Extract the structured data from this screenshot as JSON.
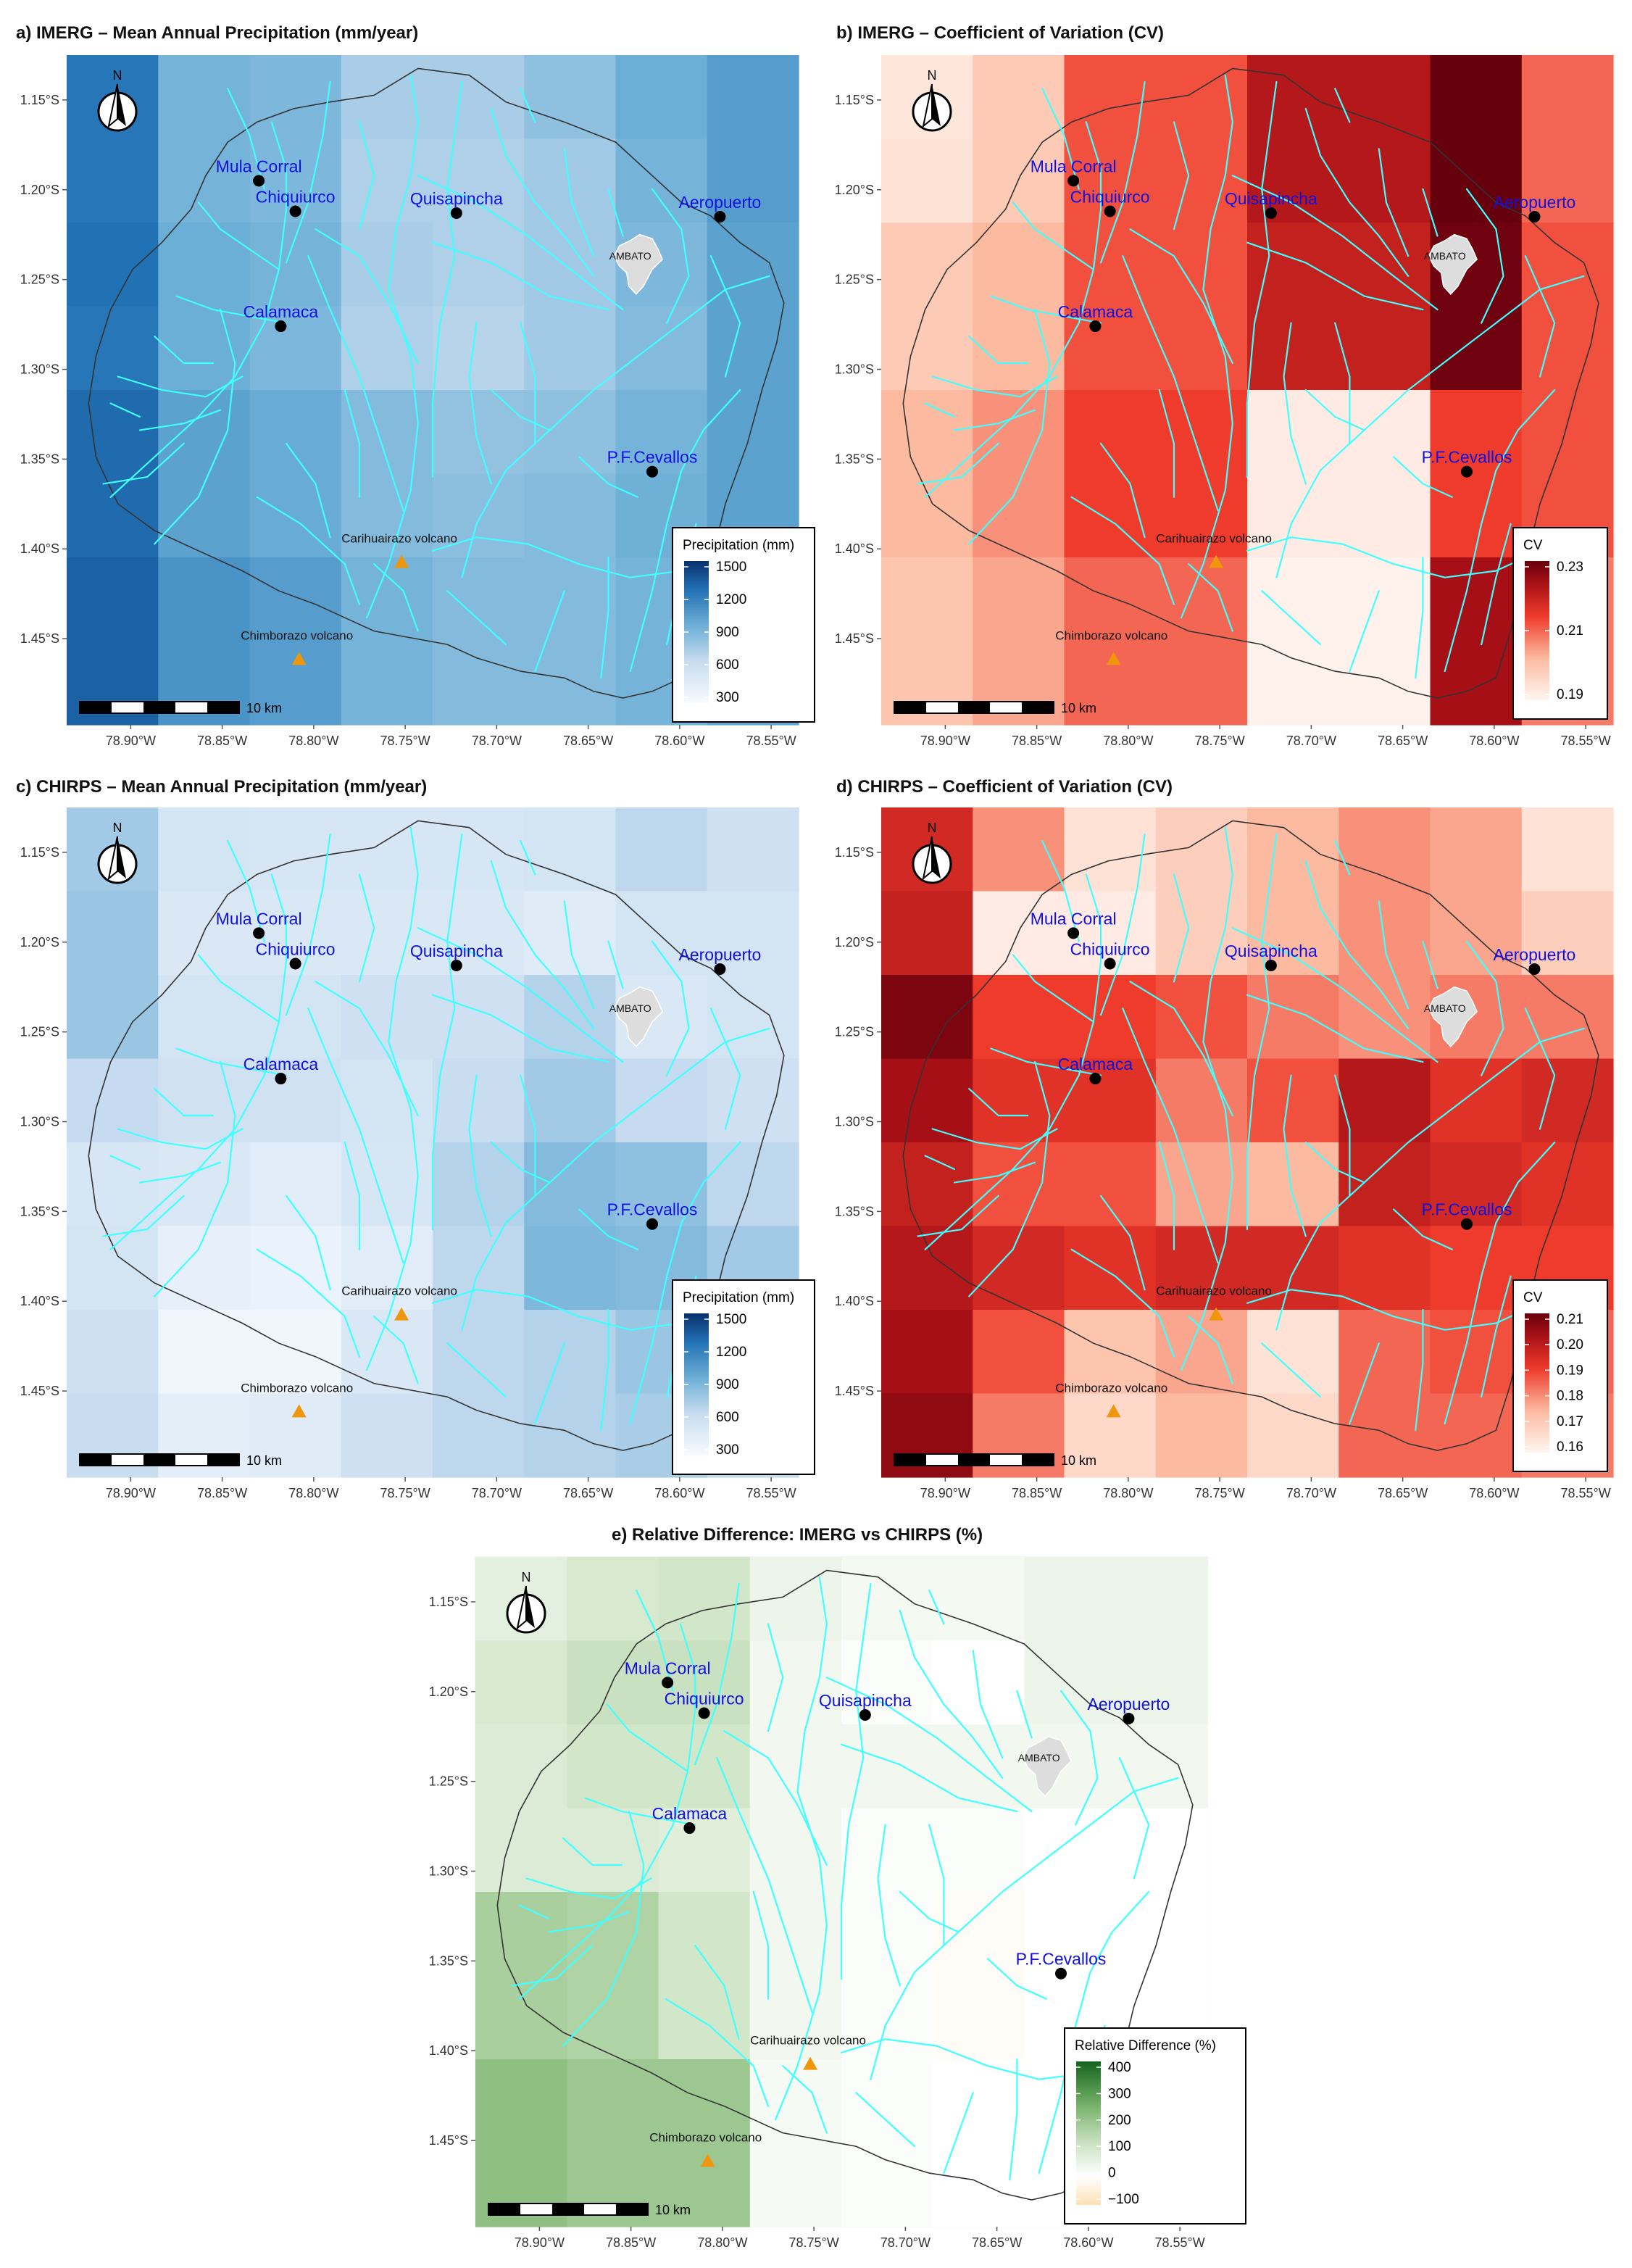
{
  "panels": [
    {
      "key": "a",
      "title": "a) IMERG – Mean Annual Precipitation (mm/year)",
      "scheme": "blue",
      "legend": {
        "title": "Precipitation (mm)",
        "ticks": [
          "1500",
          "1200",
          "900",
          "600",
          "300"
        ]
      },
      "grid": [
        [
          0.78,
          0.52,
          0.5,
          0.38,
          0.38,
          0.45,
          0.55,
          0.62
        ],
        [
          0.78,
          0.52,
          0.5,
          0.36,
          0.36,
          0.4,
          0.52,
          0.62
        ],
        [
          0.8,
          0.55,
          0.52,
          0.38,
          0.36,
          0.4,
          0.5,
          0.6
        ],
        [
          0.78,
          0.55,
          0.5,
          0.36,
          0.34,
          0.4,
          0.48,
          0.6
        ],
        [
          0.82,
          0.6,
          0.56,
          0.48,
          0.44,
          0.45,
          0.52,
          0.6
        ],
        [
          0.82,
          0.6,
          0.56,
          0.48,
          0.46,
          0.48,
          0.54,
          0.6
        ],
        [
          0.85,
          0.66,
          0.62,
          0.52,
          0.48,
          0.48,
          0.52,
          0.58
        ],
        [
          0.85,
          0.66,
          0.62,
          0.52,
          0.48,
          0.48,
          0.52,
          0.58
        ]
      ]
    },
    {
      "key": "b",
      "title": "b) IMERG – Coefficient of Variation (CV)",
      "scheme": "red",
      "legend": {
        "title": "CV",
        "ticks": [
          "0.23",
          "0.21",
          "0.19"
        ]
      },
      "grid": [
        [
          0.08,
          0.22,
          0.55,
          0.55,
          0.8,
          0.8,
          1.0,
          0.5
        ],
        [
          0.1,
          0.22,
          0.55,
          0.55,
          0.8,
          0.8,
          1.0,
          0.5
        ],
        [
          0.22,
          0.3,
          0.55,
          0.55,
          0.75,
          0.75,
          0.98,
          0.55
        ],
        [
          0.22,
          0.3,
          0.55,
          0.55,
          0.75,
          0.75,
          0.98,
          0.55
        ],
        [
          0.3,
          0.4,
          0.6,
          0.6,
          0.05,
          0.05,
          0.6,
          0.55
        ],
        [
          0.3,
          0.4,
          0.6,
          0.6,
          0.05,
          0.05,
          0.6,
          0.55
        ],
        [
          0.25,
          0.35,
          0.5,
          0.5,
          0.02,
          0.02,
          0.85,
          0.45
        ],
        [
          0.25,
          0.35,
          0.5,
          0.5,
          0.02,
          0.02,
          0.85,
          0.45
        ]
      ]
    },
    {
      "key": "c",
      "title": "c) CHIRPS – Mean Annual Precipitation (mm/year)",
      "scheme": "blue",
      "legend": {
        "title": "Precipitation (mm)",
        "ticks": [
          "1500",
          "1200",
          "900",
          "600",
          "300"
        ]
      },
      "grid": [
        [
          0.4,
          0.22,
          0.2,
          0.2,
          0.2,
          0.22,
          0.32,
          0.25
        ],
        [
          0.42,
          0.18,
          0.18,
          0.18,
          0.18,
          0.15,
          0.22,
          0.22
        ],
        [
          0.42,
          0.22,
          0.22,
          0.25,
          0.25,
          0.35,
          0.18,
          0.22
        ],
        [
          0.3,
          0.24,
          0.24,
          0.22,
          0.28,
          0.4,
          0.3,
          0.25
        ],
        [
          0.2,
          0.18,
          0.14,
          0.2,
          0.35,
          0.48,
          0.45,
          0.32
        ],
        [
          0.22,
          0.1,
          0.08,
          0.14,
          0.32,
          0.5,
          0.48,
          0.4
        ],
        [
          0.25,
          0.05,
          0.05,
          0.18,
          0.32,
          0.35,
          0.42,
          0.35
        ],
        [
          0.28,
          0.12,
          0.15,
          0.25,
          0.32,
          0.35,
          0.38,
          0.3
        ]
      ]
    },
    {
      "key": "d",
      "title": "d) CHIRPS – Coefficient of Variation (CV)",
      "scheme": "red",
      "legend": {
        "title": "CV",
        "ticks": [
          "0.21",
          "0.20",
          "0.19",
          "0.18",
          "0.17",
          "0.16"
        ]
      },
      "grid": [
        [
          0.7,
          0.4,
          0.1,
          0.2,
          0.3,
          0.4,
          0.35,
          0.1
        ],
        [
          0.75,
          0.05,
          0.05,
          0.2,
          0.3,
          0.4,
          0.35,
          0.2
        ],
        [
          0.95,
          0.6,
          0.6,
          0.55,
          0.45,
          0.4,
          0.45,
          0.45
        ],
        [
          0.85,
          0.65,
          0.65,
          0.45,
          0.55,
          0.8,
          0.65,
          0.7
        ],
        [
          0.75,
          0.55,
          0.55,
          0.35,
          0.3,
          0.75,
          0.7,
          0.65
        ],
        [
          0.8,
          0.7,
          0.65,
          0.7,
          0.7,
          0.65,
          0.6,
          0.6
        ],
        [
          0.85,
          0.55,
          0.25,
          0.35,
          0.1,
          0.5,
          0.55,
          0.5
        ],
        [
          0.9,
          0.45,
          0.15,
          0.3,
          0.15,
          0.5,
          0.5,
          0.45
        ]
      ]
    },
    {
      "key": "e",
      "title": "e) Relative Difference: IMERG vs CHIRPS (%)",
      "scheme": "green",
      "legend": {
        "title": "Relative Difference (%)",
        "ticks": [
          "400",
          "300",
          "200",
          "100",
          "0",
          "−100"
        ]
      },
      "grid": [
        [
          0.32,
          0.38,
          0.4,
          0.28,
          0.25,
          0.25,
          0.28,
          0.28
        ],
        [
          0.38,
          0.44,
          0.44,
          0.26,
          0.22,
          0.2,
          0.28,
          0.28
        ],
        [
          0.36,
          0.4,
          0.4,
          0.26,
          0.26,
          0.26,
          0.26,
          0.26
        ],
        [
          0.36,
          0.36,
          0.34,
          0.26,
          0.22,
          0.22,
          0.2,
          0.2
        ],
        [
          0.54,
          0.52,
          0.4,
          0.26,
          0.22,
          0.18,
          0.2,
          0.2
        ],
        [
          0.54,
          0.52,
          0.4,
          0.26,
          0.22,
          0.18,
          0.2,
          0.2
        ],
        [
          0.62,
          0.58,
          0.58,
          0.24,
          0.22,
          0.2,
          0.2,
          0.2
        ],
        [
          0.62,
          0.58,
          0.58,
          0.24,
          0.22,
          0.2,
          0.2,
          0.2
        ]
      ]
    }
  ],
  "map": {
    "lat_ticks": [
      "1.15°S",
      "1.20°S",
      "1.25°S",
      "1.30°S",
      "1.35°S",
      "1.40°S",
      "1.45°S"
    ],
    "lon_ticks": [
      "78.90°W",
      "78.85°W",
      "78.80°W",
      "78.75°W",
      "78.70°W",
      "78.65°W",
      "78.60°W",
      "78.55°W"
    ],
    "north_label": "N",
    "scalebar_label": "10 km",
    "city_label": "AMBATO",
    "stations": [
      {
        "name": "Mula Corral",
        "lon": -78.83,
        "lat": -1.195
      },
      {
        "name": "Chiquiurco",
        "lon": -78.81,
        "lat": -1.212
      },
      {
        "name": "Quisapincha",
        "lon": -78.722,
        "lat": -1.213
      },
      {
        "name": "Aeropuerto",
        "lon": -78.578,
        "lat": -1.215
      },
      {
        "name": "Calamaca",
        "lon": -78.818,
        "lat": -1.276
      },
      {
        "name": "P.F.Cevallos",
        "lon": -78.615,
        "lat": -1.357
      }
    ],
    "volcanoes": [
      {
        "name": "Carihuairazo volcano",
        "lon": -78.752,
        "lat": -1.407
      },
      {
        "name": "Chimborazo volcano",
        "lon": -78.808,
        "lat": -1.461
      }
    ],
    "colors": {
      "station_label": "#1010e0",
      "river": "#40ffff",
      "volcano": "#f0960c",
      "boundary": "#333333"
    }
  }
}
